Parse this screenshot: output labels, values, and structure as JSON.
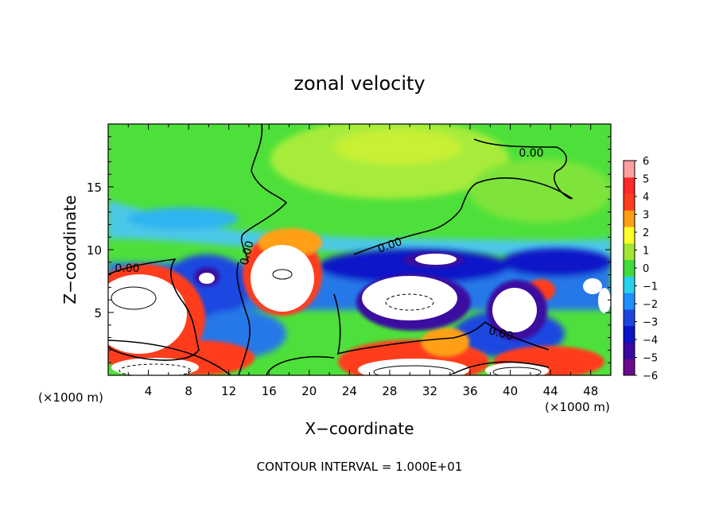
{
  "chart_data": {
    "type": "heatmap",
    "title": "zonal velocity",
    "xlabel": "X−coordinate",
    "ylabel": "Z−coordinate",
    "x_units": "(×1000 m)",
    "y_units": "(×1000 m)",
    "xlim": [
      0,
      50
    ],
    "ylim": [
      0,
      20
    ],
    "x_ticks": [
      4,
      8,
      12,
      16,
      20,
      24,
      28,
      32,
      36,
      40,
      44,
      48
    ],
    "x_tick_labels": [
      "4",
      "8",
      "12",
      "16",
      "20",
      "24",
      "28",
      "32",
      "36",
      "40",
      "44",
      "48"
    ],
    "y_ticks": [
      5,
      10,
      15
    ],
    "y_tick_labels": [
      "5",
      "10",
      "15"
    ],
    "colorbar": {
      "min": -6,
      "max": 6,
      "ticks": [
        6,
        5,
        4,
        3,
        2,
        1,
        0,
        -1,
        -2,
        -3,
        -4,
        -5,
        -6
      ],
      "tick_labels": [
        "6",
        "5",
        "4",
        "3",
        "2",
        "1",
        "0",
        "−1",
        "−2",
        "−3",
        "−4",
        "−5",
        "−6"
      ],
      "colors": [
        "#6a0a8a",
        "#3a0aa0",
        "#0a14c8",
        "#1c46e0",
        "#1e90ff",
        "#28d2ec",
        "#40dc3c",
        "#a0e632",
        "#ffff28",
        "#ffa014",
        "#ff3c1e",
        "#ff2828",
        "#ffa0a0"
      ]
    },
    "zero_contour_labels": [
      "0.00",
      "0.00",
      "0.00",
      "0.00",
      "0.00"
    ],
    "contour_interval": "CONTOUR INTERVAL = 1.000E+01"
  }
}
